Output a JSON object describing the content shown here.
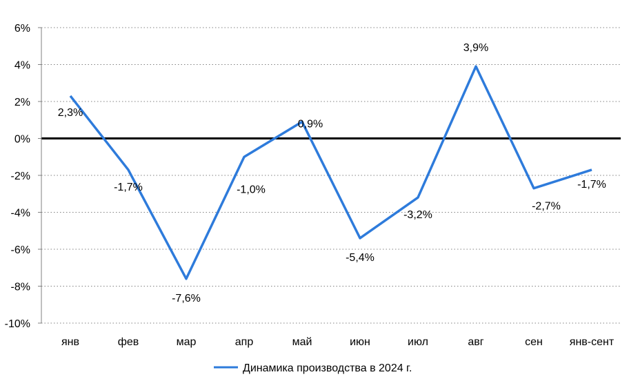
{
  "chart_data": {
    "type": "line",
    "title": "",
    "xlabel": "",
    "ylabel": "",
    "categories": [
      "янв",
      "фев",
      "мар",
      "апр",
      "май",
      "июн",
      "июл",
      "авг",
      "сен",
      "янв-сент"
    ],
    "series": [
      {
        "name": "Динамика производства в 2024 г.",
        "values": [
          2.3,
          -1.7,
          -7.6,
          -1.0,
          0.9,
          -5.4,
          -3.2,
          3.9,
          -2.7,
          -1.7
        ],
        "labels": [
          "2,3%",
          "-1,7%",
          "-7,6%",
          "-1,0%",
          "0,9%",
          "-5,4%",
          "-3,2%",
          "3,9%",
          "-2,7%",
          "-1,7%"
        ],
        "color": "#2E7BDB"
      }
    ],
    "ylim": [
      -10,
      6
    ],
    "yticks": [
      6,
      4,
      2,
      0,
      -2,
      -4,
      -6,
      -8,
      -10
    ],
    "ytick_labels": [
      "6%",
      "4%",
      "2%",
      "0%",
      "-2%",
      "-4%",
      "-6%",
      "-8%",
      "-10%"
    ],
    "grid": "horizontal dotted",
    "zero_line_color": "#000000",
    "legend": "bottom"
  }
}
